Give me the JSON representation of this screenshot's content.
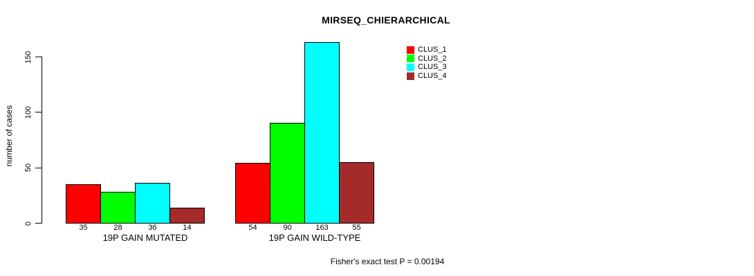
{
  "chart_data": {
    "type": "bar",
    "title": "MIRSEQ_CHIERARCHICAL",
    "ylabel": "number of cases",
    "xlabel": "",
    "annotation": "Fisher's exact test P = 0.00194",
    "categories": [
      "19P GAIN MUTATED",
      "19P GAIN WILD-TYPE"
    ],
    "series": [
      {
        "name": "CLUS_1",
        "color": "#ff0000",
        "values": [
          35,
          54
        ]
      },
      {
        "name": "CLUS_2",
        "color": "#00ff00",
        "values": [
          28,
          90
        ]
      },
      {
        "name": "CLUS_3",
        "color": "#00ffff",
        "values": [
          36,
          163
        ]
      },
      {
        "name": "CLUS_4",
        "color": "#a52a2a",
        "values": [
          14,
          55
        ]
      }
    ],
    "y_ticks": [
      0,
      50,
      100,
      150
    ],
    "ylim": [
      0,
      163
    ],
    "show_bar_values": true,
    "grid": false,
    "legend_position": "top-right",
    "background_color": "#ffffff",
    "axis_color": "#000000"
  }
}
